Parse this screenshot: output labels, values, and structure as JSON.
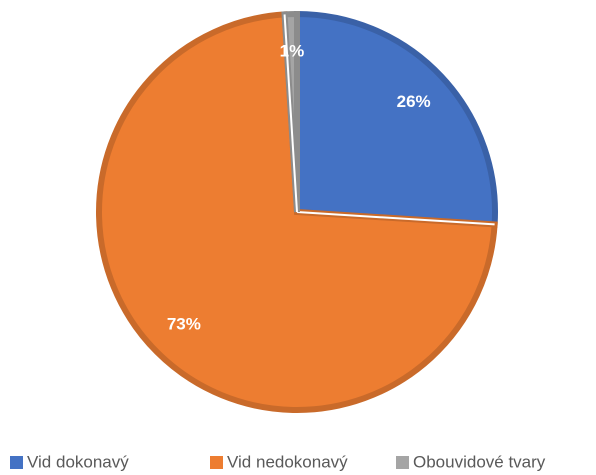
{
  "chart_data": {
    "type": "pie",
    "categories": [
      "Vid dokonavý",
      "Vid nedokonavý",
      "Obouvidové tvary"
    ],
    "values": [
      26,
      73,
      1
    ],
    "value_labels": [
      "26%",
      "73%",
      "1%"
    ],
    "colors": [
      "#4472c4",
      "#ed7d31",
      "#a5a5a5"
    ],
    "legend": "bottom"
  }
}
